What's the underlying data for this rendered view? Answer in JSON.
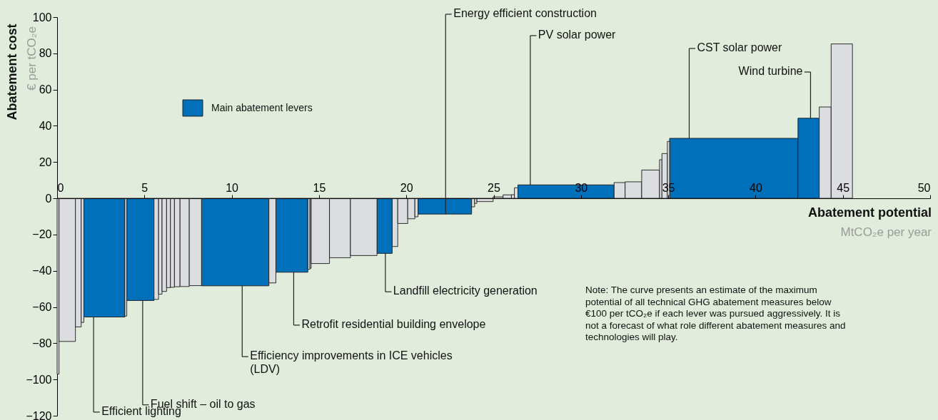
{
  "chart_data": {
    "type": "histogram",
    "bins": [
      0,
      0.11,
      1.05,
      1.38,
      1.53,
      3.88,
      3.99,
      5.55,
      5.81,
      6.01,
      6.27,
      6.49,
      6.72,
      7.04,
      7.57,
      8.27,
      12.13,
      12.53,
      14.36,
      14.48,
      14.55,
      15.6,
      16.8,
      18.32,
      19.19,
      19.51,
      20.08,
      20.49,
      20.67,
      23.74,
      23.91,
      24.04,
      24.97,
      25.54,
      26.02,
      26.19,
      26.39,
      31.9,
      32.53,
      33.48,
      34.5,
      34.64,
      34.95,
      35.08,
      42.43,
      43.65,
      44.33,
      45.55
    ],
    "series": [
      {
        "name": "Main abatement levers",
        "color": "#0070ba",
        "values": [
          null,
          null,
          null,
          null,
          -65.5,
          null,
          -56.4,
          null,
          null,
          null,
          null,
          null,
          null,
          null,
          null,
          -48.3,
          null,
          -40.8,
          null,
          null,
          null,
          null,
          null,
          -30.4,
          null,
          null,
          null,
          null,
          -8.7,
          null,
          null,
          null,
          null,
          null,
          null,
          null,
          7.4,
          null,
          null,
          null,
          null,
          null,
          null,
          33.1,
          44.2,
          null,
          null
        ]
      },
      {
        "color": "#dcdde0",
        "values": [
          -97,
          -79,
          -71,
          -68.5,
          null,
          -65,
          null,
          -55.8,
          -52.9,
          -51.4,
          -49.3,
          -49.1,
          -48.8,
          -48.7,
          -48.2,
          null,
          -46.7,
          null,
          -39.2,
          -38.6,
          -36,
          -32.8,
          -31.6,
          null,
          -26.6,
          -13.9,
          -11.3,
          -10.2,
          null,
          -4.7,
          -2.8,
          -1.8,
          0.8,
          1.9,
          2,
          5.8,
          null,
          8.7,
          9.1,
          15.6,
          21.3,
          24.7,
          31.4,
          null,
          null,
          50.4,
          85.2
        ]
      }
    ],
    "xlabel": "Abatement potential\nMtCO₂e per year",
    "ylabel": "Abatement cost\n€ per tCO₂e",
    "xlim": [
      0,
      50
    ],
    "xticks": [
      0,
      5,
      10,
      15,
      20,
      25,
      30,
      35,
      40,
      45,
      50
    ],
    "ylim": [
      -120,
      100
    ],
    "yticks": [
      -120,
      -100,
      -80,
      -60,
      -40,
      -20,
      0,
      20,
      40,
      60,
      80,
      100
    ],
    "legend": "top left",
    "annotations": [
      {
        "text": "Efficient lighting",
        "x": 2.09,
        "y": -65.5
      },
      {
        "text": "Fuel shift – oil to gas",
        "x": 4.9,
        "y": -56.4
      },
      {
        "text": "Efficiency improvements in ICE vehicles\n(LDV)",
        "x": 10.6,
        "y": -48.3
      },
      {
        "text": "Retrofit residential building envelope",
        "x": 13.55,
        "y": -40.8
      },
      {
        "text": "Landfill electricity generation",
        "x": 18.8,
        "y": -30.4
      },
      {
        "text": "Energy efficient construction",
        "x": 22.25,
        "y": -8.7
      },
      {
        "text": "PV solar power",
        "x": 27.1,
        "y": 7.4
      },
      {
        "text": "CST solar power",
        "x": 36.2,
        "y": 33.1
      },
      {
        "text": "Wind turbine",
        "x": 43.15,
        "y": 44.2
      },
      "Note: The curve presents an estimate of the maximum\npotential of all technical GHG abatement measures below\n€100 per tCO₂e if each lever was pursued aggressively. It is\nnot a forecast of what role different abatement measures and\ntechnologies will play."
    ]
  }
}
